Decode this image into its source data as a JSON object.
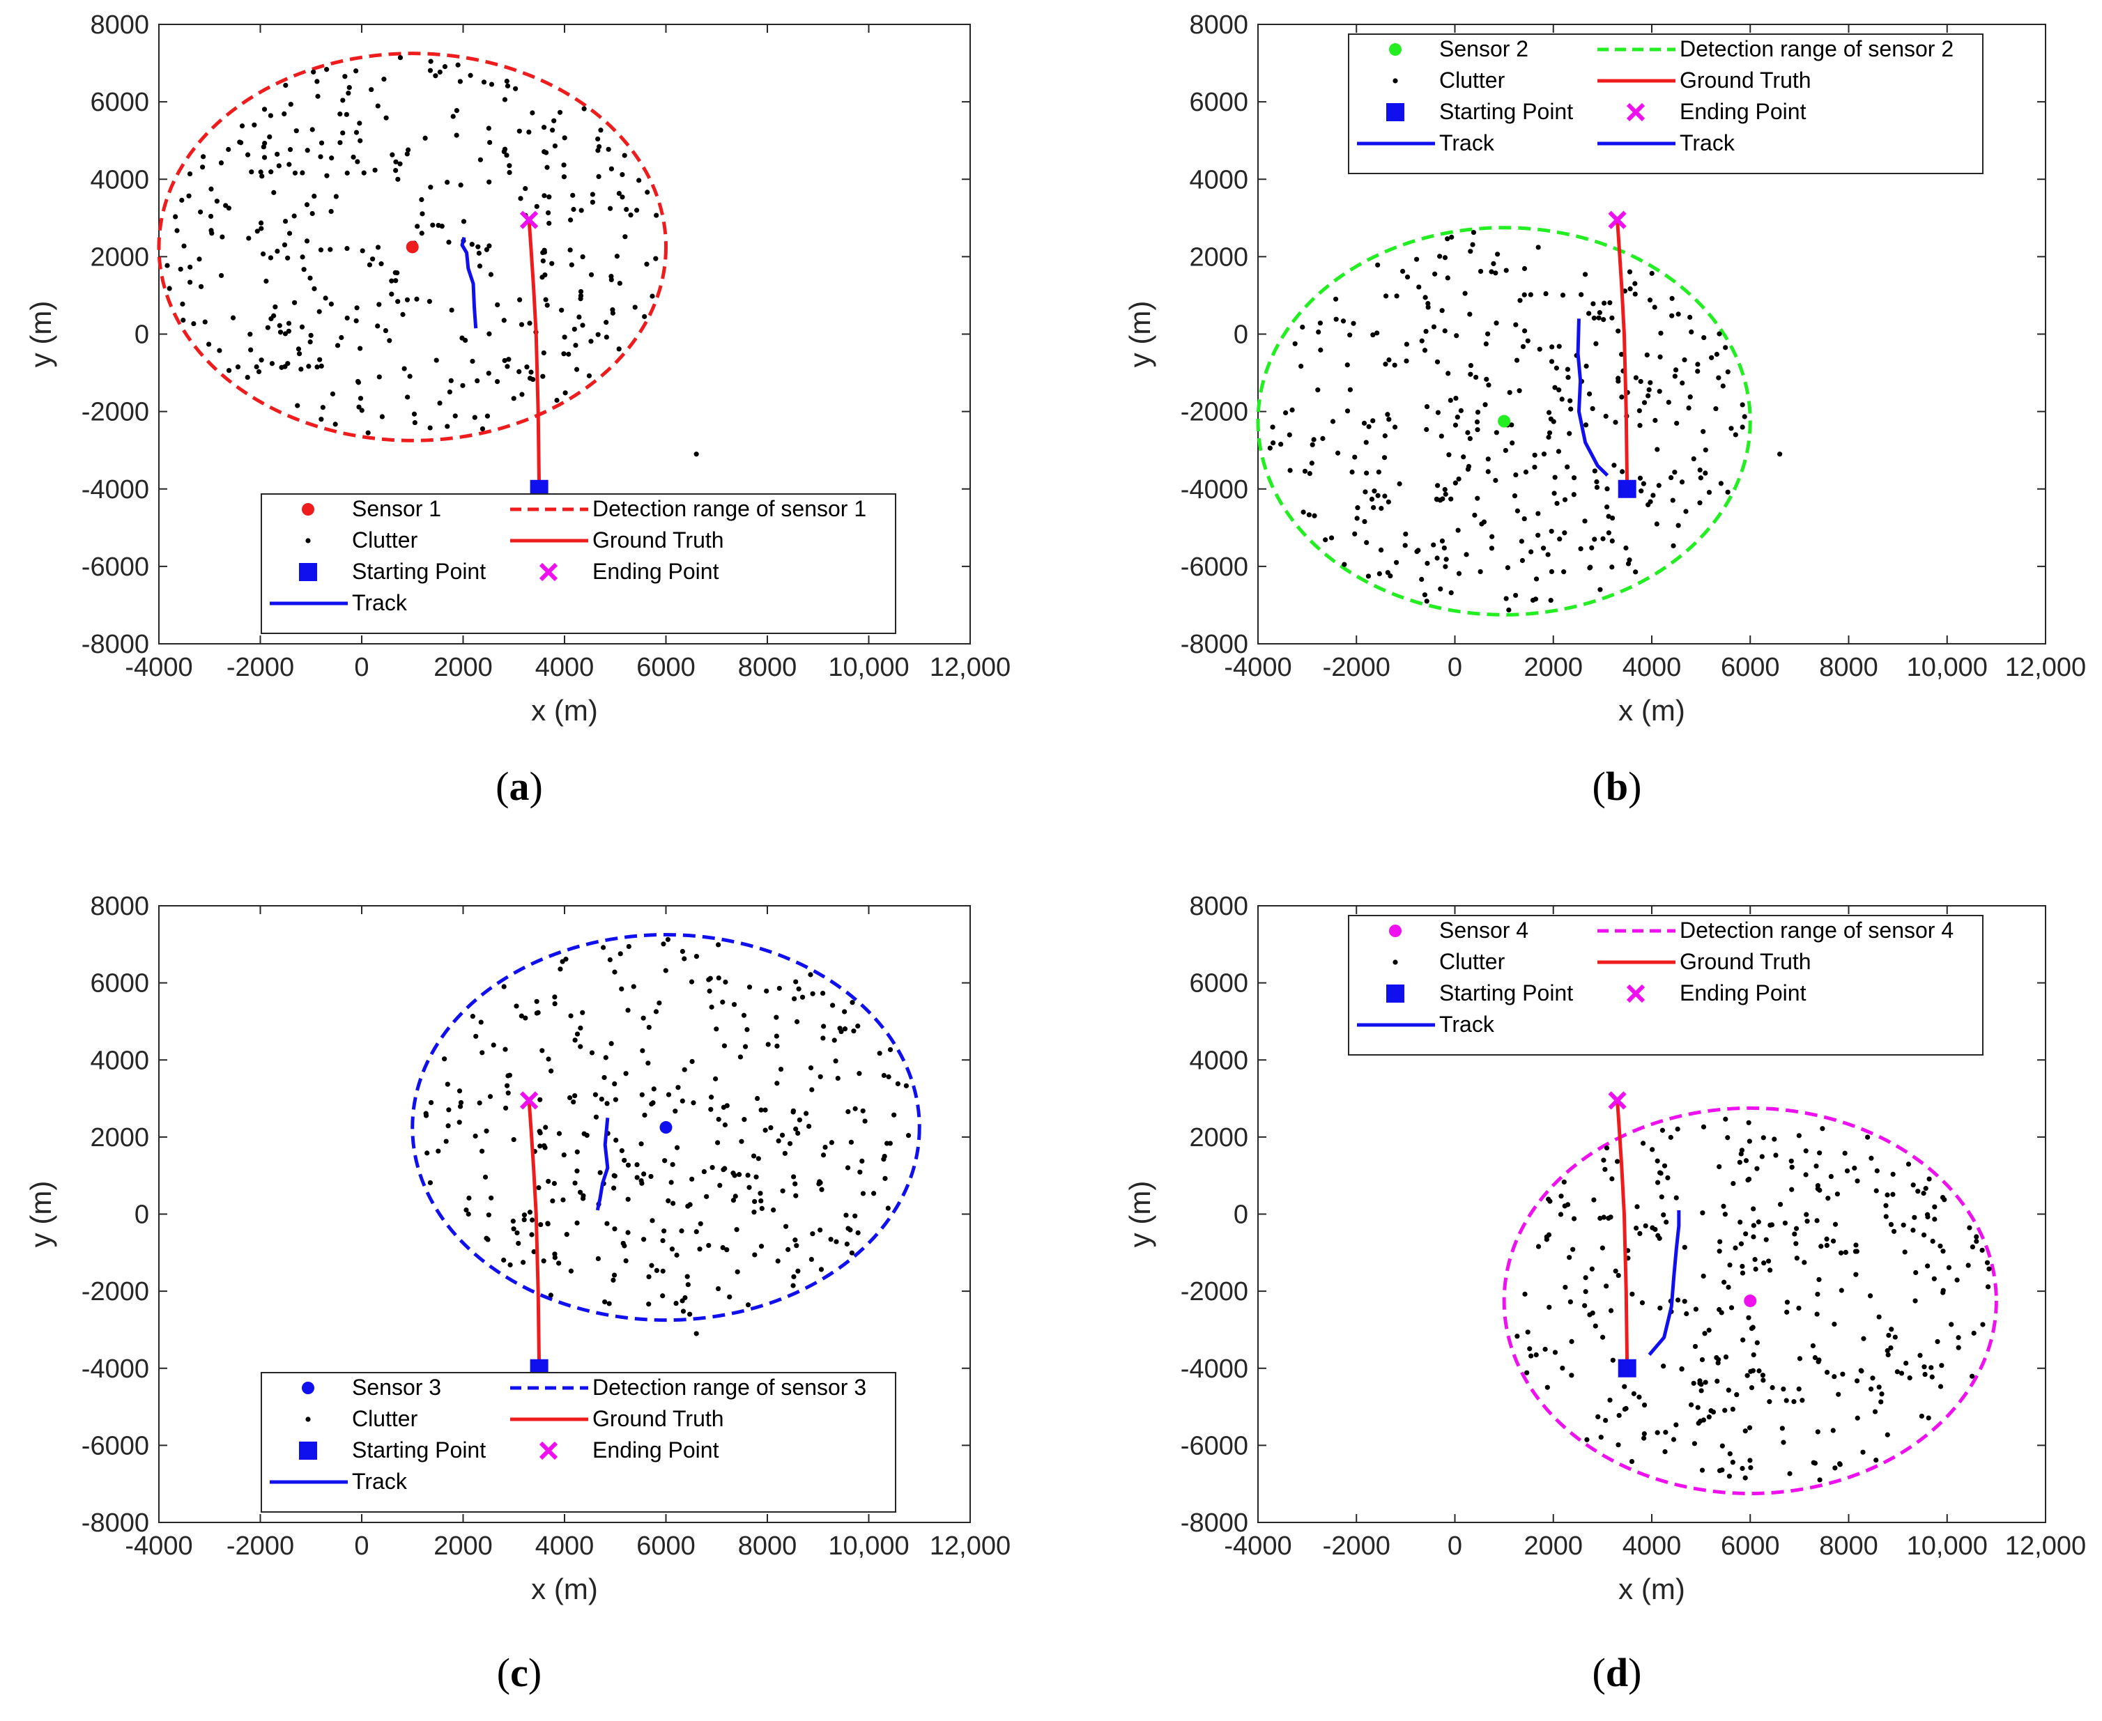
{
  "colors": {
    "red": "#ee1c1c",
    "green": "#22ee22",
    "blue": "#1010ee",
    "magenta": "#ee10ee",
    "black": "#000000"
  },
  "icons": {
    "sensor": "filled-circle",
    "clutter": "small-dot",
    "start": "filled-square",
    "end": "x-cross"
  },
  "chart_data": [
    {
      "type": "scatter",
      "panel": "(a)",
      "caption_letter": "a",
      "xlabel": "x (m)",
      "ylabel": "y (m)",
      "xlim": [
        -4000,
        12000
      ],
      "ylim": [
        -8000,
        8000
      ],
      "xticks": [
        -4000,
        -2000,
        0,
        2000,
        4000,
        6000,
        8000,
        10000,
        12000
      ],
      "xtick_labels": [
        "-4000",
        "-2000",
        "0",
        "2000",
        "4000",
        "6000",
        "8000",
        "10,000",
        "12,000"
      ],
      "yticks": [
        -8000,
        -6000,
        -4000,
        -2000,
        0,
        2000,
        4000,
        6000,
        8000
      ],
      "ytick_labels": [
        "-8000",
        "-6000",
        "-4000",
        "-2000",
        "0",
        "2000",
        "4000",
        "6000",
        "8000"
      ],
      "sensor": {
        "x": 1000,
        "y": 2250,
        "color": "#ee1c1c"
      },
      "detection_range": {
        "cx": 1000,
        "cy": 2250,
        "rx": 5000,
        "ry": 5000,
        "color": "#ee1c1c"
      },
      "clutter_seed": 11,
      "clutter_count": 380,
      "outliers": [
        [
          6600,
          -3100
        ]
      ],
      "ground_truth": {
        "x": [
          3500,
          3480,
          3440,
          3390,
          3340,
          3300
        ],
        "y": [
          -4000,
          -2000,
          0,
          1200,
          2200,
          2950
        ]
      },
      "track": {
        "x": [
          2250,
          2220,
          2200,
          2100,
          2070,
          1980,
          2020
        ],
        "y": [
          150,
          700,
          1300,
          1700,
          2100,
          2300,
          2500
        ]
      },
      "starting_point": {
        "x": 3500,
        "y": -4000
      },
      "ending_point": {
        "x": 3300,
        "y": 2950
      },
      "legend": {
        "placement": "bottom-center",
        "entries": [
          {
            "label": "Sensor 1",
            "kind": "sensor",
            "color": "#ee1c1c"
          },
          {
            "label": "Detection range of sensor 1",
            "kind": "dashed",
            "color": "#ee1c1c"
          },
          {
            "label": "Clutter",
            "kind": "dot",
            "color": "#000000"
          },
          {
            "label": "Ground Truth",
            "kind": "line",
            "color": "#ee1c1c"
          },
          {
            "label": "Starting Point",
            "kind": "square",
            "color": "#1010ee"
          },
          {
            "label": "Ending Point",
            "kind": "cross",
            "color": "#ee10ee"
          },
          {
            "label": "Track",
            "kind": "line",
            "color": "#1010ee"
          }
        ]
      }
    },
    {
      "type": "scatter",
      "panel": "(b)",
      "caption_letter": "b",
      "xlabel": "x (m)",
      "ylabel": "y (m)",
      "xlim": [
        -4000,
        12000
      ],
      "ylim": [
        -8000,
        8000
      ],
      "xticks": [
        -4000,
        -2000,
        0,
        2000,
        4000,
        6000,
        8000,
        10000,
        12000
      ],
      "xtick_labels": [
        "-4000",
        "-2000",
        "0",
        "2000",
        "4000",
        "6000",
        "8000",
        "10,000",
        "12,000"
      ],
      "yticks": [
        -8000,
        -6000,
        -4000,
        -2000,
        0,
        2000,
        4000,
        6000,
        8000
      ],
      "ytick_labels": [
        "-8000",
        "-6000",
        "-4000",
        "-2000",
        "0",
        "2000",
        "4000",
        "6000",
        "8000"
      ],
      "sensor": {
        "x": 1000,
        "y": -2250,
        "color": "#22ee22"
      },
      "detection_range": {
        "cx": 1000,
        "cy": -2250,
        "rx": 5000,
        "ry": 5000,
        "color": "#22ee22"
      },
      "clutter_seed": 23,
      "clutter_count": 380,
      "outliers": [
        [
          6600,
          -3100
        ]
      ],
      "ground_truth": {
        "x": [
          3500,
          3480,
          3440,
          3390,
          3340,
          3300
        ],
        "y": [
          -4000,
          -2000,
          0,
          1200,
          2200,
          2950
        ]
      },
      "track": {
        "x": [
          3100,
          2900,
          2650,
          2520,
          2550,
          2500,
          2520
        ],
        "y": [
          -3650,
          -3400,
          -2800,
          -2000,
          -1200,
          -500,
          400
        ]
      },
      "starting_point": {
        "x": 3500,
        "y": -4000
      },
      "ending_point": {
        "x": 3300,
        "y": 2950
      },
      "legend": {
        "placement": "top-center",
        "entries": [
          {
            "label": "Sensor 2",
            "kind": "sensor",
            "color": "#22ee22"
          },
          {
            "label": "Detection range of sensor 2",
            "kind": "dashed",
            "color": "#22ee22"
          },
          {
            "label": "Clutter",
            "kind": "dot",
            "color": "#000000"
          },
          {
            "label": "Ground Truth",
            "kind": "line",
            "color": "#ee1c1c"
          },
          {
            "label": "Starting Point",
            "kind": "square",
            "color": "#1010ee"
          },
          {
            "label": "Ending Point",
            "kind": "cross",
            "color": "#ee10ee"
          },
          {
            "label": "Track",
            "kind": "line",
            "color": "#1010ee"
          },
          {
            "label": "Track",
            "kind": "line",
            "color": "#1010ee"
          }
        ]
      }
    },
    {
      "type": "scatter",
      "panel": "(c)",
      "caption_letter": "c",
      "xlabel": "x (m)",
      "ylabel": "y (m)",
      "xlim": [
        -4000,
        12000
      ],
      "ylim": [
        -8000,
        8000
      ],
      "xticks": [
        -4000,
        -2000,
        0,
        2000,
        4000,
        6000,
        8000,
        10000,
        12000
      ],
      "xtick_labels": [
        "-4000",
        "-2000",
        "0",
        "2000",
        "4000",
        "6000",
        "8000",
        "10,000",
        "12,000"
      ],
      "yticks": [
        -8000,
        -6000,
        -4000,
        -2000,
        0,
        2000,
        4000,
        6000,
        8000
      ],
      "ytick_labels": [
        "-8000",
        "-6000",
        "-4000",
        "-2000",
        "0",
        "2000",
        "4000",
        "6000",
        "8000"
      ],
      "sensor": {
        "x": 6000,
        "y": 2250,
        "color": "#1010ee"
      },
      "detection_range": {
        "cx": 6000,
        "cy": 2250,
        "rx": 5000,
        "ry": 5000,
        "color": "#1010ee"
      },
      "clutter_seed": 37,
      "clutter_count": 380,
      "outliers": [
        [
          6600,
          -3100
        ]
      ],
      "ground_truth": {
        "x": [
          3500,
          3480,
          3440,
          3390,
          3340,
          3300
        ],
        "y": [
          -4000,
          -2000,
          0,
          1200,
          2200,
          2950
        ]
      },
      "track": {
        "x": [
          4850,
          4800,
          4850,
          4750,
          4700,
          4650
        ],
        "y": [
          2500,
          1800,
          1200,
          800,
          400,
          100
        ]
      },
      "starting_point": {
        "x": 3500,
        "y": -4000
      },
      "ending_point": {
        "x": 3300,
        "y": 2950
      },
      "legend": {
        "placement": "bottom-center",
        "entries": [
          {
            "label": "Sensor 3",
            "kind": "sensor",
            "color": "#1010ee"
          },
          {
            "label": "Detection range of sensor 3",
            "kind": "dashed",
            "color": "#1010ee"
          },
          {
            "label": "Clutter",
            "kind": "dot",
            "color": "#000000"
          },
          {
            "label": "Ground Truth",
            "kind": "line",
            "color": "#ee1c1c"
          },
          {
            "label": "Starting Point",
            "kind": "square",
            "color": "#1010ee"
          },
          {
            "label": "Ending Point",
            "kind": "cross",
            "color": "#ee10ee"
          },
          {
            "label": "Track",
            "kind": "line",
            "color": "#1010ee"
          }
        ]
      }
    },
    {
      "type": "scatter",
      "panel": "(d)",
      "caption_letter": "d",
      "xlabel": "x (m)",
      "ylabel": "y (m)",
      "xlim": [
        -4000,
        12000
      ],
      "ylim": [
        -8000,
        8000
      ],
      "xticks": [
        -4000,
        -2000,
        0,
        2000,
        4000,
        6000,
        8000,
        10000,
        12000
      ],
      "xtick_labels": [
        "-4000",
        "-2000",
        "0",
        "2000",
        "4000",
        "6000",
        "8000",
        "10,000",
        "12,000"
      ],
      "yticks": [
        -8000,
        -6000,
        -4000,
        -2000,
        0,
        2000,
        4000,
        6000,
        8000
      ],
      "ytick_labels": [
        "-8000",
        "-6000",
        "-4000",
        "-2000",
        "0",
        "2000",
        "4000",
        "6000",
        "8000"
      ],
      "sensor": {
        "x": 6000,
        "y": -2250,
        "color": "#ee10ee"
      },
      "detection_range": {
        "cx": 6000,
        "cy": -2250,
        "rx": 5000,
        "ry": 5000,
        "color": "#ee10ee"
      },
      "clutter_seed": 53,
      "clutter_count": 380,
      "outliers": [],
      "ground_truth": {
        "x": [
          3500,
          3480,
          3440,
          3390,
          3340,
          3300
        ],
        "y": [
          -4000,
          -2000,
          0,
          1200,
          2200,
          2950
        ]
      },
      "track": {
        "x": [
          3950,
          4250,
          4400,
          4450,
          4500,
          4550,
          4550
        ],
        "y": [
          -3650,
          -3200,
          -2400,
          -1600,
          -900,
          -300,
          100
        ]
      },
      "starting_point": {
        "x": 3500,
        "y": -4000
      },
      "ending_point": {
        "x": 3300,
        "y": 2950
      },
      "legend": {
        "placement": "top-center",
        "entries": [
          {
            "label": "Sensor 4",
            "kind": "sensor",
            "color": "#ee10ee"
          },
          {
            "label": "Detection range of sensor 4",
            "kind": "dashed",
            "color": "#ee10ee"
          },
          {
            "label": "Clutter",
            "kind": "dot",
            "color": "#000000"
          },
          {
            "label": "Ground Truth",
            "kind": "line",
            "color": "#ee1c1c"
          },
          {
            "label": "Starting Point",
            "kind": "square",
            "color": "#1010ee"
          },
          {
            "label": "Ending Point",
            "kind": "cross",
            "color": "#ee10ee"
          },
          {
            "label": "Track",
            "kind": "line",
            "color": "#1010ee"
          }
        ]
      }
    }
  ]
}
